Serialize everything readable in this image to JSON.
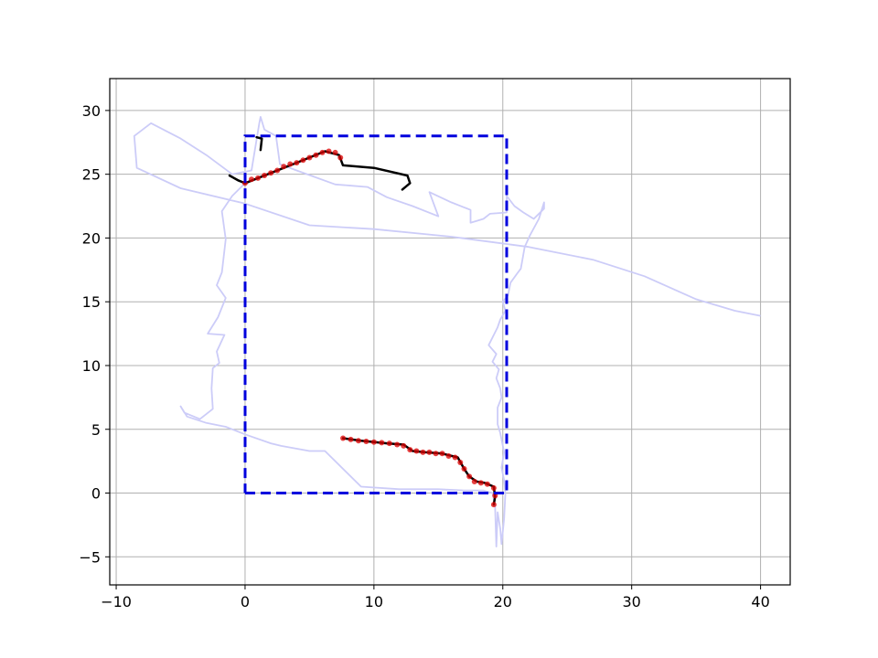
{
  "chart_data": {
    "type": "line",
    "title": "",
    "xlabel": "",
    "ylabel": "",
    "xlim": [
      -10.5,
      42.3
    ],
    "ylim": [
      -7.2,
      32.5
    ],
    "grid": true,
    "x_ticks": [
      -10,
      0,
      10,
      20,
      30,
      40
    ],
    "y_ticks": [
      -5,
      0,
      5,
      10,
      15,
      20,
      25,
      30
    ],
    "x_tick_labels": [
      "−10",
      "0",
      "10",
      "20",
      "30",
      "40"
    ],
    "y_tick_labels": [
      "−5",
      "0",
      "5",
      "10",
      "15",
      "20",
      "25",
      "30"
    ],
    "colors": {
      "track": "#ccccf8",
      "rectangle": "#0000dd",
      "path": "#000000",
      "points": "#dd0000",
      "grid": "#b0b0b0"
    },
    "series": [
      {
        "style": "track",
        "points": [
          [
            40,
            13.9
          ],
          [
            38,
            14.3
          ],
          [
            35,
            15.2
          ],
          [
            31,
            17
          ],
          [
            27,
            18.3
          ],
          [
            22,
            19.3
          ],
          [
            16,
            20.1
          ],
          [
            10,
            20.7
          ],
          [
            5,
            21
          ],
          [
            0,
            22.7
          ],
          [
            -5,
            23.9
          ],
          [
            -8.4,
            25.5
          ],
          [
            -8.6,
            28
          ],
          [
            -7.3,
            29
          ],
          [
            -5,
            27.8
          ],
          [
            -3,
            26.5
          ],
          [
            -1,
            25
          ],
          [
            0.5,
            25.3
          ],
          [
            1.1,
            29
          ],
          [
            1.2,
            29.5
          ],
          [
            1.5,
            28.5
          ],
          [
            2.4,
            28
          ],
          [
            2.7,
            25.8
          ],
          [
            4,
            25.3
          ],
          [
            7,
            24.2
          ],
          [
            9.5,
            24
          ],
          [
            11,
            23.2
          ],
          [
            13,
            22.5
          ],
          [
            15,
            21.7
          ],
          [
            14.3,
            23.6
          ],
          [
            16,
            22.8
          ],
          [
            17.5,
            22.2
          ],
          [
            17.5,
            21.2
          ],
          [
            18.5,
            21.5
          ],
          [
            19,
            21.9
          ],
          [
            20.3,
            22
          ],
          [
            20.3,
            23.3
          ],
          [
            20.9,
            22.5
          ],
          [
            21.6,
            22
          ],
          [
            22.4,
            21.5
          ],
          [
            23.2,
            22.3
          ],
          [
            23.2,
            22.8
          ],
          [
            22.8,
            21.5
          ],
          [
            22.1,
            20.2
          ],
          [
            21.7,
            19.3
          ],
          [
            21.4,
            17.6
          ],
          [
            21.1,
            17.2
          ],
          [
            20.6,
            16.5
          ],
          [
            20.4,
            15.5
          ],
          [
            20,
            15
          ],
          [
            20.2,
            14.3
          ],
          [
            19.8,
            13.6
          ],
          [
            19.6,
            13
          ],
          [
            19.3,
            12.4
          ],
          [
            18.9,
            11.6
          ],
          [
            19.5,
            10.9
          ],
          [
            19.2,
            10.3
          ],
          [
            19.7,
            9.7
          ],
          [
            19.5,
            9
          ],
          [
            19.8,
            8.2
          ],
          [
            19.9,
            7.5
          ],
          [
            19.6,
            6.7
          ],
          [
            19.6,
            5.4
          ],
          [
            19.8,
            4.7
          ],
          [
            20.1,
            3.2
          ],
          [
            19.9,
            2
          ],
          [
            20.1,
            1
          ],
          [
            20.2,
            0
          ],
          [
            20.1,
            -2
          ],
          [
            19.9,
            -4
          ],
          [
            19.8,
            -2.8
          ],
          [
            19.6,
            -1.5
          ],
          [
            19.5,
            -4.2
          ],
          [
            19.4,
            -1
          ],
          [
            19.2,
            0
          ],
          [
            18.5,
            0.2
          ],
          [
            17,
            0.2
          ],
          [
            15,
            0.3
          ],
          [
            12,
            0.3
          ],
          [
            9,
            0.5
          ],
          [
            6.2,
            3.3
          ],
          [
            5,
            3.3
          ],
          [
            2.8,
            3.7
          ],
          [
            2,
            3.9
          ],
          [
            0,
            4.6
          ],
          [
            -1.5,
            5.2
          ],
          [
            -3,
            5.5
          ],
          [
            -4.5,
            6
          ],
          [
            -5,
            6.8
          ],
          [
            -4.7,
            6.3
          ],
          [
            -3.5,
            5.8
          ],
          [
            -2.5,
            6.6
          ],
          [
            -2.6,
            8.2
          ],
          [
            -2.5,
            9.8
          ],
          [
            -2,
            10.2
          ],
          [
            -2.2,
            11.1
          ],
          [
            -1.6,
            12.4
          ],
          [
            -2.9,
            12.5
          ],
          [
            -2.1,
            13.8
          ],
          [
            -1.5,
            15.3
          ],
          [
            -2.2,
            16.3
          ],
          [
            -1.8,
            17.3
          ],
          [
            -1.5,
            19.9
          ],
          [
            -1.8,
            22.1
          ],
          [
            -1,
            23.3
          ],
          [
            0,
            24.3
          ]
        ]
      },
      {
        "style": "path",
        "points": [
          [
            1.2,
            26.9
          ],
          [
            1.3,
            27.8
          ],
          [
            0.9,
            27.9
          ]
        ]
      },
      {
        "style": "path",
        "points": [
          [
            -1.2,
            24.9
          ],
          [
            -0.5,
            24.5
          ],
          [
            0,
            24.3
          ],
          [
            2,
            25.1
          ],
          [
            4,
            25.9
          ],
          [
            6.2,
            26.8
          ],
          [
            7.3,
            26.5
          ],
          [
            7.6,
            25.7
          ],
          [
            10,
            25.5
          ],
          [
            12.6,
            24.9
          ],
          [
            12.8,
            24.3
          ],
          [
            12.2,
            23.8
          ]
        ]
      },
      {
        "style": "points",
        "points": [
          [
            0,
            24.3
          ],
          [
            0.5,
            24.6
          ],
          [
            1,
            24.7
          ],
          [
            1.5,
            24.9
          ],
          [
            2,
            25.1
          ],
          [
            2.5,
            25.3
          ],
          [
            3,
            25.6
          ],
          [
            3.5,
            25.8
          ],
          [
            4,
            25.9
          ],
          [
            4.5,
            26.1
          ],
          [
            5,
            26.3
          ],
          [
            5.5,
            26.5
          ],
          [
            6,
            26.7
          ],
          [
            6.5,
            26.8
          ],
          [
            7,
            26.7
          ],
          [
            7.4,
            26.3
          ]
        ]
      },
      {
        "style": "path",
        "points": [
          [
            7.6,
            4.3
          ],
          [
            9,
            4.1
          ],
          [
            11,
            3.9
          ],
          [
            12.3,
            3.8
          ],
          [
            13,
            3.3
          ],
          [
            14,
            3.2
          ],
          [
            15.3,
            3.1
          ],
          [
            16.5,
            2.8
          ],
          [
            17,
            1.9
          ],
          [
            17.4,
            1.3
          ],
          [
            18,
            0.9
          ],
          [
            18.6,
            0.8
          ],
          [
            19.3,
            0.5
          ],
          [
            19.4,
            -0.3
          ],
          [
            19.3,
            -0.9
          ]
        ]
      },
      {
        "style": "points",
        "points": [
          [
            7.6,
            4.3
          ],
          [
            8.2,
            4.2
          ],
          [
            8.8,
            4.1
          ],
          [
            9.4,
            4.05
          ],
          [
            10,
            4
          ],
          [
            10.6,
            3.95
          ],
          [
            11.2,
            3.9
          ],
          [
            11.8,
            3.8
          ],
          [
            12.3,
            3.7
          ],
          [
            12.8,
            3.4
          ],
          [
            13.3,
            3.3
          ],
          [
            13.8,
            3.2
          ],
          [
            14.3,
            3.2
          ],
          [
            14.8,
            3.1
          ],
          [
            15.3,
            3.1
          ],
          [
            15.8,
            2.9
          ],
          [
            16.3,
            2.8
          ],
          [
            16.7,
            2.4
          ],
          [
            17,
            1.9
          ],
          [
            17.4,
            1.3
          ],
          [
            17.8,
            0.9
          ],
          [
            18.3,
            0.8
          ],
          [
            18.8,
            0.7
          ],
          [
            19.3,
            0.4
          ],
          [
            19.4,
            -0.2
          ],
          [
            19.3,
            -0.9
          ]
        ]
      },
      {
        "style": "rectangle",
        "points": [
          [
            0,
            0
          ],
          [
            20.3,
            0
          ],
          [
            20.3,
            28
          ],
          [
            0,
            28
          ],
          [
            0,
            0
          ]
        ]
      }
    ]
  }
}
